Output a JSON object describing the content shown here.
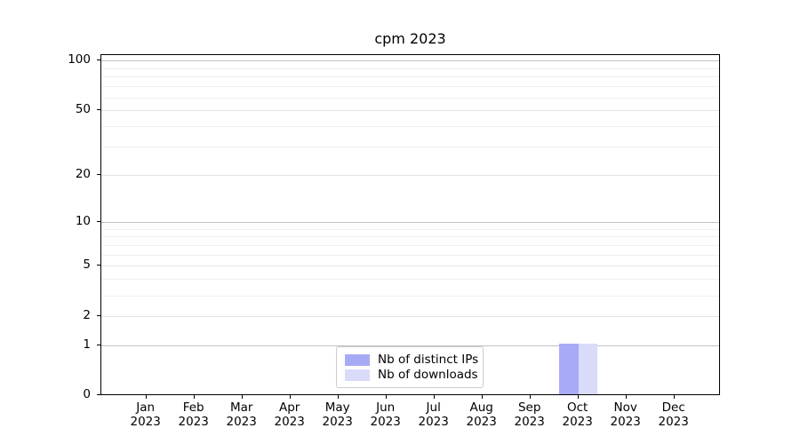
{
  "figure": {
    "title": "cpm 2023"
  },
  "chart_data": {
    "type": "bar",
    "title": "cpm 2023",
    "categories": [
      "Jan 2023",
      "Feb 2023",
      "Mar 2023",
      "Apr 2023",
      "May 2023",
      "Jun 2023",
      "Jul 2023",
      "Aug 2023",
      "Sep 2023",
      "Oct 2023",
      "Nov 2023",
      "Dec 2023"
    ],
    "series": [
      {
        "name": "Nb of distinct IPs",
        "color": "#a9aaf6",
        "values": [
          0,
          0,
          0,
          0,
          0,
          0,
          0,
          0,
          0,
          1,
          0,
          0
        ]
      },
      {
        "name": "Nb of downloads",
        "color": "#dadbf8",
        "values": [
          0,
          0,
          0,
          0,
          0,
          0,
          0,
          0,
          0,
          1,
          0,
          0
        ]
      }
    ],
    "xlabel": "",
    "ylabel": "",
    "yaxis": {
      "scale": "log1p",
      "ylim": [
        0,
        108
      ],
      "tick_labels": [
        0,
        1,
        2,
        5,
        10,
        20,
        50,
        100
      ],
      "decade_gridlines": [
        1,
        10,
        100
      ],
      "sub_gridlines": [
        2,
        5,
        20,
        50
      ],
      "minor_gridlines": [
        3,
        4,
        6,
        7,
        8,
        9,
        30,
        40,
        60,
        70,
        80,
        90
      ]
    },
    "grid": "on",
    "legend": {
      "position": "lower center inside plot"
    }
  },
  "colors": {
    "background": "#ffffff",
    "spine": "#000000",
    "grid_decade": "#c2c2c2",
    "grid_sub": "#e3e3e3",
    "grid_minor": "#f0f0f0",
    "tick_text": "#000000",
    "legend_border": "#cccccc"
  }
}
